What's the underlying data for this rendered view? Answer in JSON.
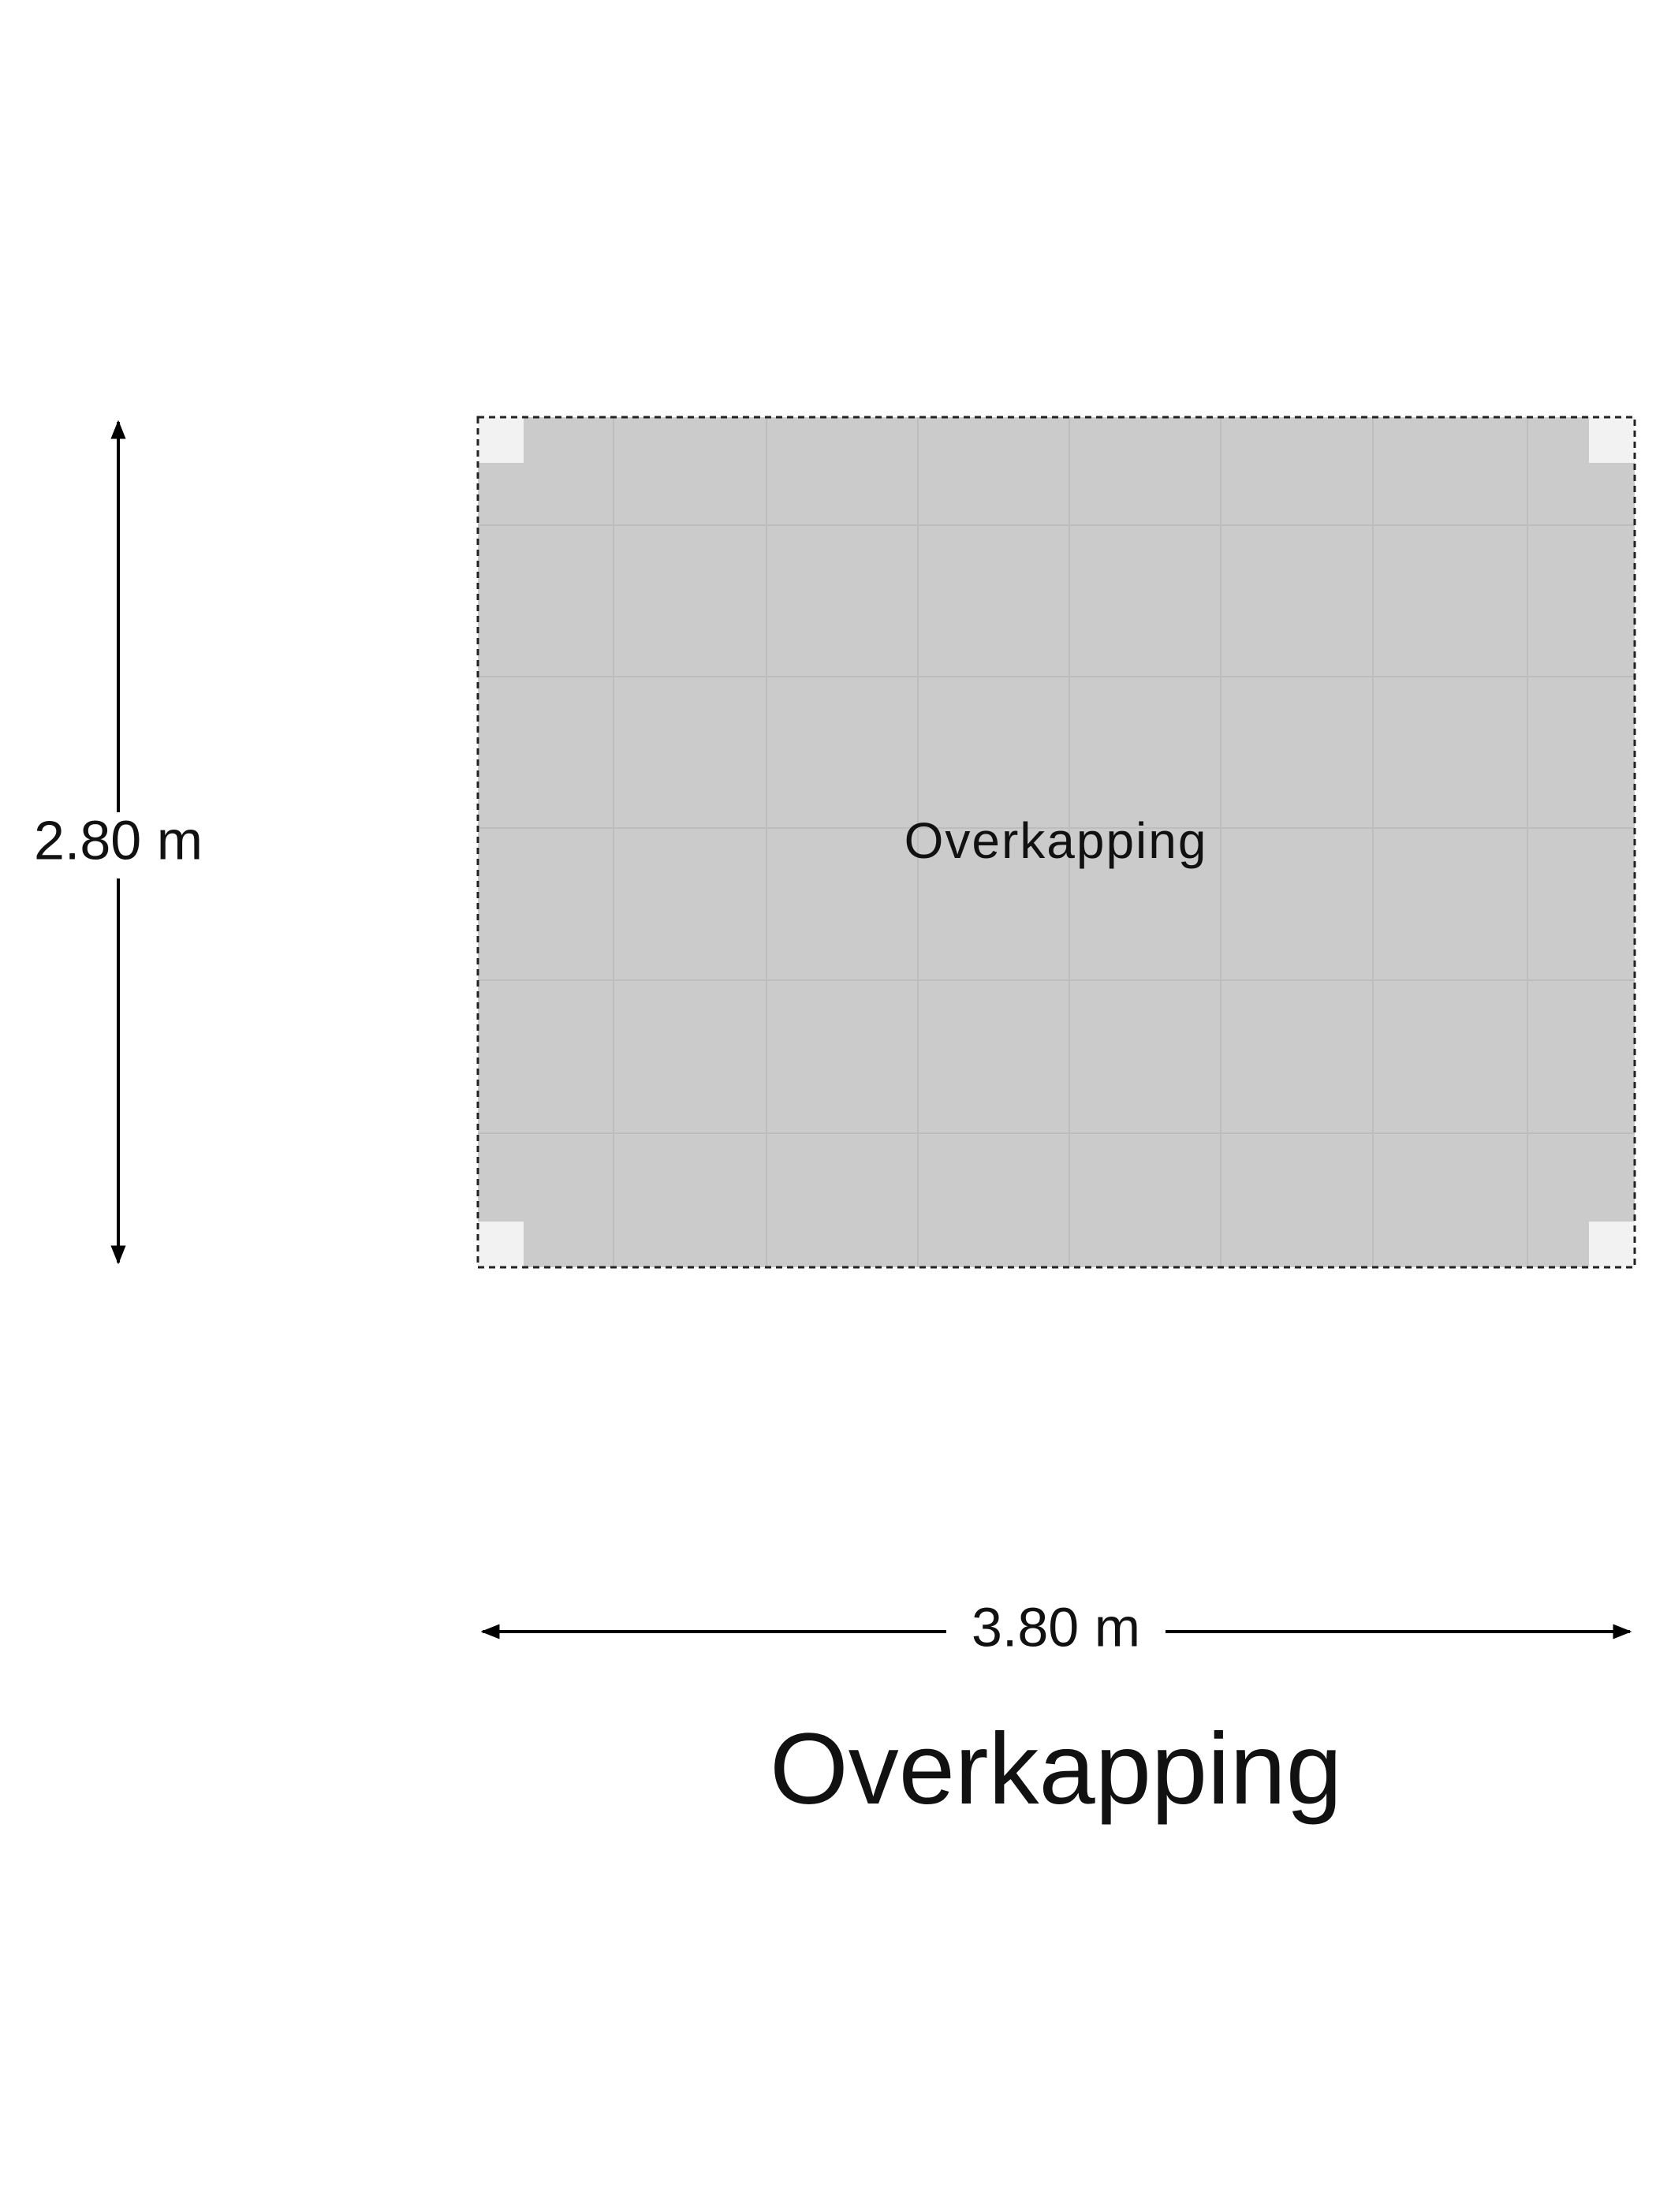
{
  "room": {
    "label": "Overkapping"
  },
  "dimensions": {
    "height": "2.80 m",
    "width": "3.80 m"
  },
  "title": "Overkapping"
}
